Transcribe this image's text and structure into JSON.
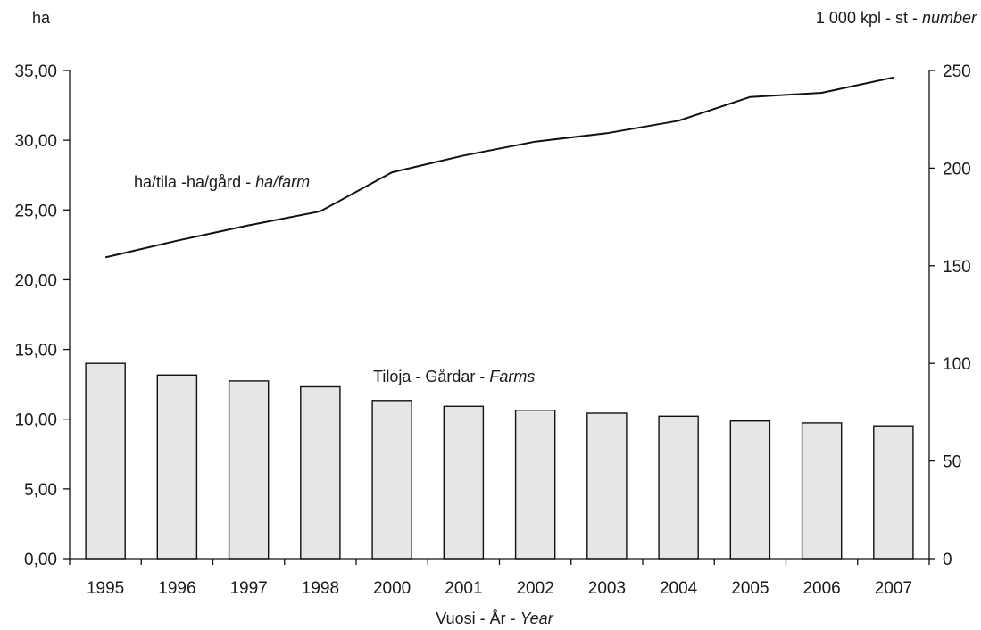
{
  "chart_data": {
    "type": "bar",
    "left_axis_unit": "ha",
    "right_axis_unit": {
      "plain": "1 000 kpl - st - ",
      "italic": "number"
    },
    "xlabel": {
      "plain": "Vuosi - År - ",
      "italic": "Year"
    },
    "categories": [
      "1995",
      "1996",
      "1997",
      "1998",
      "2000",
      "2001",
      "2002",
      "2003",
      "2004",
      "2005",
      "2006",
      "2007"
    ],
    "left_axis": {
      "min": 0,
      "max": 35,
      "step": 5,
      "tick_labels": [
        "0,00",
        "5,00",
        "10,00",
        "15,00",
        "20,00",
        "25,00",
        "30,00",
        "35,00"
      ]
    },
    "right_axis": {
      "min": 0,
      "max": 250,
      "step": 50,
      "tick_labels": [
        "0",
        "50",
        "100",
        "150",
        "200",
        "250"
      ]
    },
    "grid": false,
    "series": [
      {
        "name": {
          "plain": "Tiloja - Gårdar - ",
          "italic": "Farms"
        },
        "kind": "bar",
        "axis": "right",
        "values": [
          100,
          94,
          91,
          88,
          81,
          78,
          76,
          74.5,
          73,
          70.5,
          69.5,
          68
        ]
      },
      {
        "name": {
          "plain": "ha/tila -ha/gård - ",
          "italic": "ha/farm"
        },
        "kind": "line",
        "axis": "left",
        "values": [
          21.6,
          22.8,
          23.9,
          24.9,
          27.7,
          28.9,
          29.9,
          30.5,
          31.4,
          33.1,
          33.4,
          34.5
        ]
      }
    ],
    "colors": {
      "bar_fill": "#e6e6e6",
      "stroke": "#111111"
    }
  }
}
